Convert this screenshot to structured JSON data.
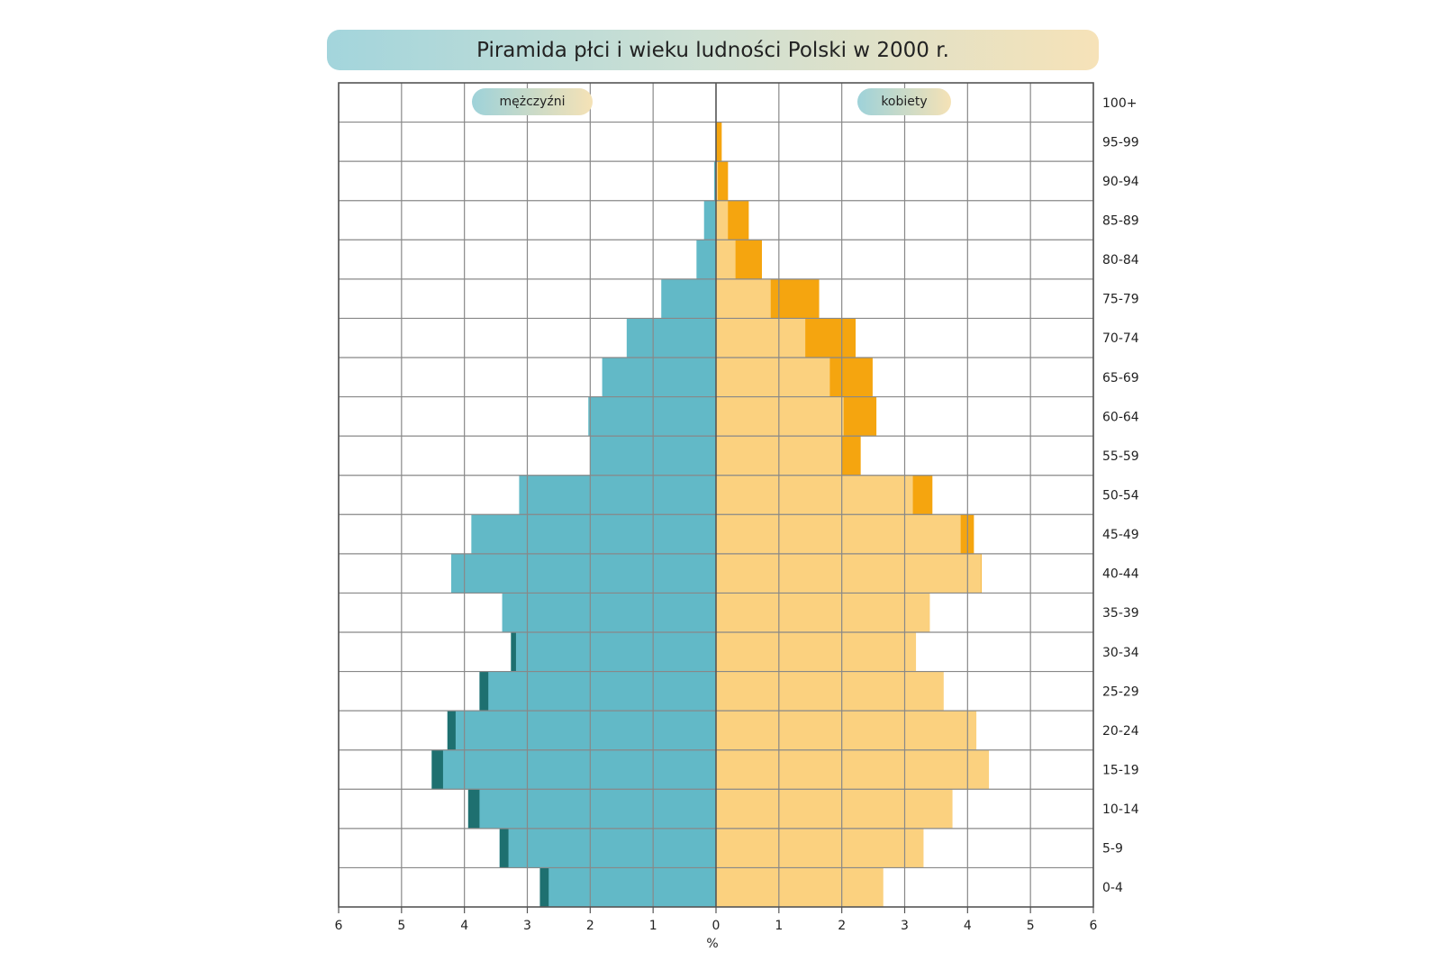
{
  "chart_data": {
    "type": "bar",
    "title": "Piramida płci i wieku ludności Polski w 2000 r.",
    "xlabel": "%",
    "xlim": [
      -6,
      6
    ],
    "x_ticks": [
      "6",
      "5",
      "4",
      "3",
      "2",
      "1",
      "0",
      "1",
      "2",
      "3",
      "4",
      "5",
      "6"
    ],
    "grid": true,
    "categories": [
      "100+",
      "95-99",
      "90-94",
      "85-89",
      "80-84",
      "75-79",
      "70-74",
      "65-69",
      "60-64",
      "55-59",
      "50-54",
      "45-49",
      "40-44",
      "35-39",
      "30-34",
      "25-29",
      "20-24",
      "15-19",
      "10-14",
      "5-9",
      "0-4"
    ],
    "series": [
      {
        "name": "mężczyźni",
        "color": "#62b9c7",
        "excess_color": "#1e7070",
        "values": [
          0.0,
          0.0,
          0.03,
          0.19,
          0.31,
          0.87,
          1.42,
          1.81,
          2.03,
          2.0,
          3.13,
          3.89,
          4.21,
          3.4,
          3.26,
          3.76,
          4.27,
          4.52,
          3.94,
          3.44,
          2.8
        ]
      },
      {
        "name": "kobiety",
        "color": "#fbd17f",
        "excess_color": "#f5a50f",
        "values": [
          0.0,
          0.09,
          0.19,
          0.52,
          0.73,
          1.64,
          2.22,
          2.49,
          2.55,
          2.3,
          3.44,
          4.1,
          4.22,
          3.4,
          3.18,
          3.62,
          4.14,
          4.34,
          3.76,
          3.3,
          2.66
        ]
      }
    ]
  }
}
